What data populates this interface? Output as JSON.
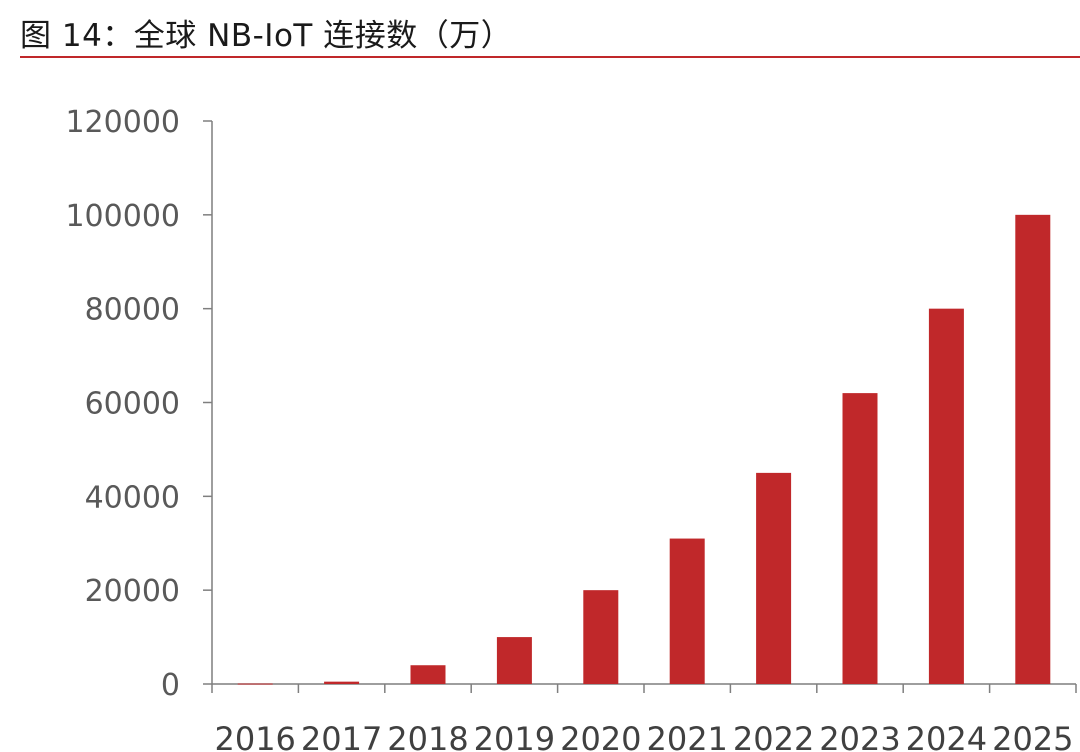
{
  "header": {
    "title": "图 14：全球 NB-IoT 连接数（万）"
  },
  "colors": {
    "bar": "#c0282a",
    "axis": "#7f7f7f",
    "rule": "#c0282a"
  },
  "chart_data": {
    "type": "bar",
    "title": "图 14：全球 NB-IoT 连接数（万）",
    "xlabel": "",
    "ylabel": "",
    "categories": [
      "2016",
      "2017",
      "2018",
      "2019",
      "2020",
      "2021",
      "2022",
      "2023",
      "2024",
      "2025"
    ],
    "values": [
      100,
      500,
      4000,
      10000,
      20000,
      31000,
      45000,
      62000,
      80000,
      100000
    ],
    "ylim": [
      0,
      120000
    ],
    "yticks": [
      0,
      20000,
      40000,
      60000,
      80000,
      100000,
      120000
    ],
    "grid": false,
    "legend": "none"
  }
}
